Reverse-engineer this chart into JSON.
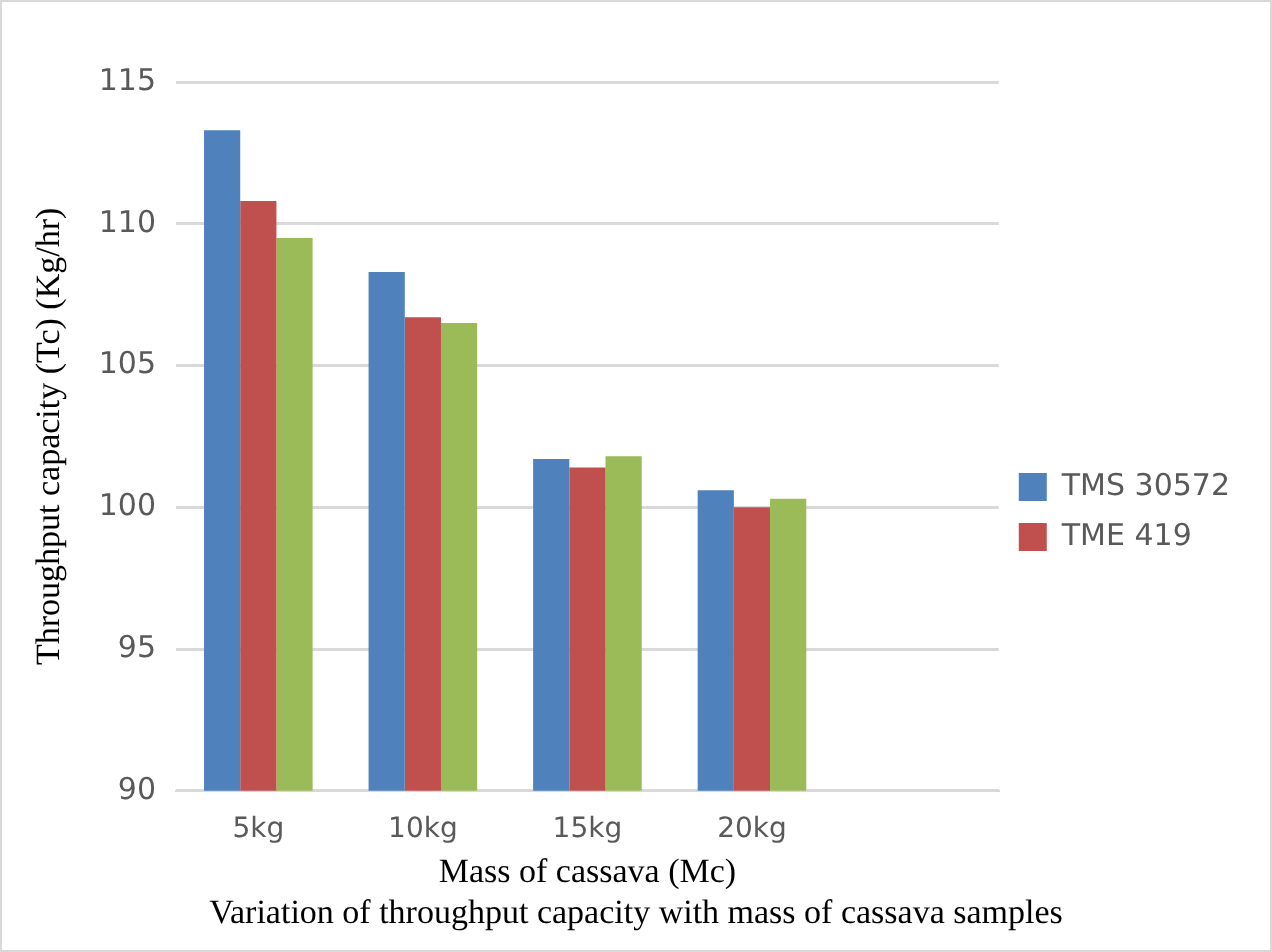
{
  "chart_data": {
    "type": "bar",
    "title": "Variation of throughput capacity with mass of cassava samples",
    "xlabel": "Mass of cassava (Mc)",
    "ylabel": "Throughput capacity (Tc) (Kg/hr)",
    "categories": [
      "5kg",
      "10kg",
      "15kg",
      "20kg",
      null
    ],
    "series": [
      {
        "name": "TMS 30572",
        "color": "#4f81bd",
        "values": [
          113.3,
          108.3,
          101.7,
          100.6,
          null
        ]
      },
      {
        "name": "TME 419",
        "color": "#c0504d",
        "values": [
          110.8,
          106.7,
          101.4,
          100.0,
          null
        ]
      },
      {
        "color": "#9bbb59",
        "values": [
          109.5,
          106.5,
          101.8,
          100.3,
          null
        ]
      }
    ],
    "ylim": [
      90,
      115
    ],
    "yticks": [
      90,
      95,
      100,
      105,
      110,
      115
    ],
    "grid": "y",
    "legend": "right"
  }
}
